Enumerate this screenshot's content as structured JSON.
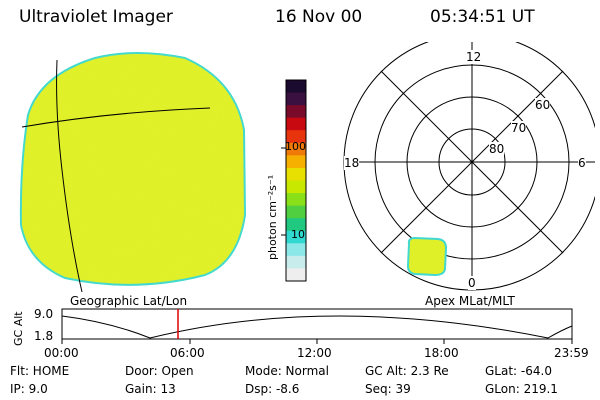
{
  "header": {
    "title": "Ultraviolet Imager",
    "date": "16 Nov 00",
    "time": "05:34:51 UT"
  },
  "colorbar": {
    "unit_label": "photon cm⁻²s⁻¹",
    "ticks": [
      "100",
      "10"
    ],
    "colors": [
      "#1a0a2e",
      "#3a1040",
      "#7a0a2a",
      "#c80a10",
      "#e8340c",
      "#f07a08",
      "#f5b000",
      "#e8e000",
      "#c8e800",
      "#8ae018",
      "#50d040",
      "#20c880",
      "#30d8d0",
      "#8ce8e8",
      "#c8ecec",
      "#eeeeee"
    ]
  },
  "left_panel": {
    "label": "Geographic Lat/Lon",
    "fill_color": "#e0f028",
    "rim_color": "#40d8d0"
  },
  "polar_panel": {
    "label": "Apex MLat/MLT",
    "mlt_labels": [
      "12",
      "18",
      "6",
      "0"
    ],
    "lat_labels": [
      "60",
      "70",
      "80"
    ]
  },
  "timeline": {
    "y_axis_title": "GC Alt",
    "y_ticks": [
      "9.0",
      "1.8"
    ],
    "x_ticks": [
      "00:00",
      "06:00",
      "12:00",
      "18:00",
      "23:59"
    ],
    "current_time_color": "#e00000"
  },
  "info": {
    "flt": "Flt: HOME",
    "ip": "IP:  9.0",
    "door": "Door: Open",
    "gain": "Gain: 13",
    "mode": "Mode: Normal",
    "dsp": "Dsp:    -8.6",
    "gcalt": "GC Alt: 2.3 Re",
    "seq": "Seq: 39",
    "glat": "GLat: -64.0",
    "glon": "GLon: 219.1"
  }
}
